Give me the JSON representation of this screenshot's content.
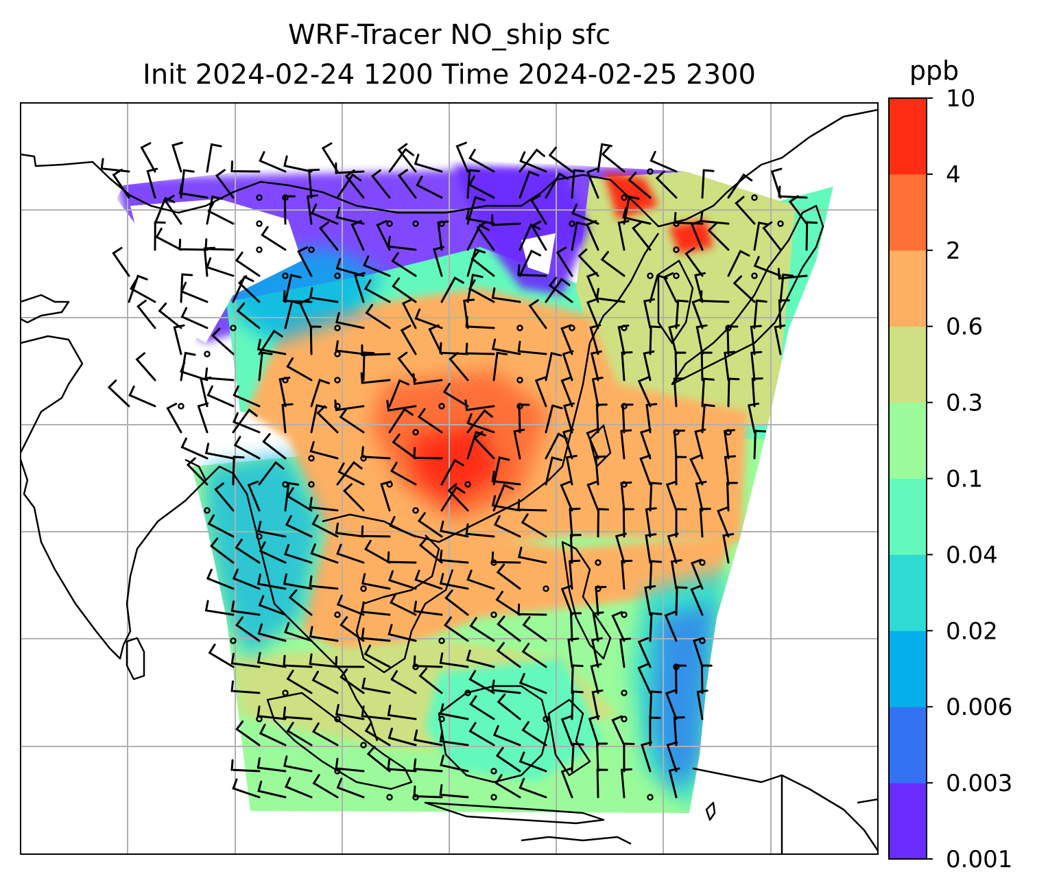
{
  "title": {
    "line1": "WRF-Tracer NO_ship sfc",
    "line2": "Init 2024-02-24 1200 Time 2024-02-25 2300"
  },
  "colorbar": {
    "unit": "ppb",
    "levels": [
      "0.001",
      "0.003",
      "0.006",
      "0.02",
      "0.04",
      "0.1",
      "0.3",
      "0.6",
      "2",
      "4",
      "10"
    ],
    "colors": [
      "#6a2cff",
      "#3373f3",
      "#05b0ea",
      "#2ddbd3",
      "#63f9bd",
      "#9bfb9a",
      "#cde182",
      "#feb062",
      "#ff7037",
      "#ff2d14"
    ]
  },
  "map": {
    "background": "#ffffff",
    "gridline_color": "#b0b0b0",
    "coastline_color": "#000000",
    "overlays": [
      "wind-barbs",
      "coastlines",
      "gridlines"
    ]
  }
}
